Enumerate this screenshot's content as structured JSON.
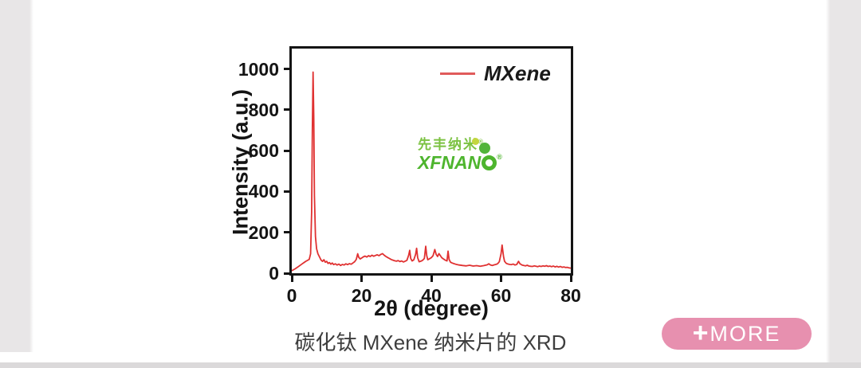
{
  "page": {
    "caption": "碳化钛 MXene 纳米片的 XRD",
    "more_button": {
      "plus": "+",
      "label": "MORE",
      "bg_color": "#e790af"
    },
    "colors": {
      "side_gutter": "#e8e6e7",
      "bottom_strip": "#dbd9da",
      "background": "#ffffff"
    }
  },
  "watermark": {
    "line1": "先丰纳米",
    "reg_mark": "®",
    "line2_prefix": "XFNAN",
    "line2_o": "O",
    "color_line1": "#7cc242",
    "color_line2": "#4eb52e"
  },
  "chart_data": {
    "type": "line",
    "title": "",
    "xlabel": "2θ (degree)",
    "ylabel": "Intensity (a.u.)",
    "xlim": [
      0,
      80
    ],
    "ylim": [
      0,
      1100
    ],
    "x_ticks": [
      0,
      20,
      40,
      60,
      80
    ],
    "y_ticks": [
      0,
      200,
      400,
      600,
      800,
      1000
    ],
    "grid": false,
    "legend": {
      "label": "MXene",
      "position": "top-right",
      "line_color": "#e05b5b"
    },
    "series": [
      {
        "name": "MXene",
        "color": "#e03131",
        "points": [
          [
            0,
            12
          ],
          [
            1,
            22
          ],
          [
            2,
            34
          ],
          [
            3,
            46
          ],
          [
            4,
            58
          ],
          [
            5,
            68
          ],
          [
            5.4,
            95
          ],
          [
            5.7,
            300
          ],
          [
            5.9,
            700
          ],
          [
            6.1,
            985
          ],
          [
            6.3,
            760
          ],
          [
            6.5,
            380
          ],
          [
            6.8,
            180
          ],
          [
            7.1,
            120
          ],
          [
            7.5,
            95
          ],
          [
            8,
            78
          ],
          [
            8.4,
            64
          ],
          [
            8.8,
            58
          ],
          [
            9.2,
            66
          ],
          [
            9.6,
            54
          ],
          [
            10,
            58
          ],
          [
            10.4,
            48
          ],
          [
            10.8,
            52
          ],
          [
            11.2,
            44
          ],
          [
            11.6,
            50
          ],
          [
            12,
            42
          ],
          [
            12.5,
            46
          ],
          [
            13,
            40
          ],
          [
            13.5,
            45
          ],
          [
            14,
            38
          ],
          [
            14.5,
            43
          ],
          [
            15,
            40
          ],
          [
            15.5,
            46
          ],
          [
            16,
            42
          ],
          [
            16.5,
            47
          ],
          [
            17,
            44
          ],
          [
            17.5,
            50
          ],
          [
            18,
            56
          ],
          [
            18.5,
            68
          ],
          [
            18.9,
            95
          ],
          [
            19.2,
            78
          ],
          [
            19.6,
            70
          ],
          [
            20,
            74
          ],
          [
            20.5,
            80
          ],
          [
            21,
            84
          ],
          [
            21.5,
            79
          ],
          [
            22,
            86
          ],
          [
            22.5,
            82
          ],
          [
            23,
            88
          ],
          [
            23.5,
            83
          ],
          [
            24,
            87
          ],
          [
            24.5,
            90
          ],
          [
            25,
            86
          ],
          [
            25.5,
            92
          ],
          [
            26,
            96
          ],
          [
            26.5,
            88
          ],
          [
            27,
            82
          ],
          [
            27.5,
            77
          ],
          [
            28,
            72
          ],
          [
            28.5,
            67
          ],
          [
            29,
            64
          ],
          [
            29.5,
            61
          ],
          [
            30,
            59
          ],
          [
            30.5,
            62
          ],
          [
            31,
            57
          ],
          [
            31.5,
            60
          ],
          [
            32,
            55
          ],
          [
            32.5,
            59
          ],
          [
            33,
            63
          ],
          [
            33.5,
            88
          ],
          [
            33.8,
            112
          ],
          [
            34.1,
            72
          ],
          [
            34.5,
            60
          ],
          [
            35,
            66
          ],
          [
            35.5,
            92
          ],
          [
            35.8,
            122
          ],
          [
            36.1,
            76
          ],
          [
            36.5,
            56
          ],
          [
            37,
            59
          ],
          [
            37.5,
            63
          ],
          [
            38,
            72
          ],
          [
            38.4,
            132
          ],
          [
            38.7,
            86
          ],
          [
            39,
            66
          ],
          [
            39.5,
            71
          ],
          [
            40,
            76
          ],
          [
            40.5,
            86
          ],
          [
            41,
            116
          ],
          [
            41.4,
            92
          ],
          [
            41.8,
            82
          ],
          [
            42.2,
            96
          ],
          [
            42.6,
            86
          ],
          [
            43,
            76
          ],
          [
            43.5,
            70
          ],
          [
            44,
            64
          ],
          [
            44.5,
            60
          ],
          [
            44.8,
            108
          ],
          [
            45.1,
            68
          ],
          [
            45.5,
            54
          ],
          [
            46,
            50
          ],
          [
            46.5,
            47
          ],
          [
            47,
            44
          ],
          [
            47.5,
            42
          ],
          [
            48,
            40
          ],
          [
            49,
            38
          ],
          [
            50,
            36
          ],
          [
            51,
            39
          ],
          [
            52,
            35
          ],
          [
            53,
            37
          ],
          [
            54,
            34
          ],
          [
            55,
            37
          ],
          [
            56,
            41
          ],
          [
            56.5,
            46
          ],
          [
            57,
            40
          ],
          [
            57.5,
            38
          ],
          [
            58,
            41
          ],
          [
            58.5,
            43
          ],
          [
            59,
            46
          ],
          [
            59.5,
            56
          ],
          [
            60,
            95
          ],
          [
            60.3,
            138
          ],
          [
            60.7,
            82
          ],
          [
            61,
            58
          ],
          [
            61.5,
            48
          ],
          [
            62,
            45
          ],
          [
            62.5,
            43
          ],
          [
            63,
            42
          ],
          [
            63.5,
            45
          ],
          [
            64,
            40
          ],
          [
            64.5,
            43
          ],
          [
            65,
            58
          ],
          [
            65.4,
            47
          ],
          [
            66,
            40
          ],
          [
            66.5,
            38
          ],
          [
            67,
            36
          ],
          [
            67.5,
            39
          ],
          [
            68,
            35
          ],
          [
            68.5,
            34
          ],
          [
            69,
            33
          ],
          [
            69.5,
            36
          ],
          [
            70,
            34
          ],
          [
            70.5,
            32
          ],
          [
            71,
            35
          ],
          [
            71.5,
            33
          ],
          [
            72,
            36
          ],
          [
            72.5,
            34
          ],
          [
            73,
            37
          ],
          [
            73.5,
            33
          ],
          [
            74,
            35
          ],
          [
            74.5,
            32
          ],
          [
            75,
            35
          ],
          [
            75.5,
            31
          ],
          [
            76,
            34
          ],
          [
            76.5,
            30
          ],
          [
            77,
            33
          ],
          [
            77.5,
            29
          ],
          [
            78,
            31
          ],
          [
            78.5,
            28
          ],
          [
            79,
            29
          ],
          [
            79.5,
            26
          ],
          [
            80,
            25
          ]
        ]
      }
    ]
  }
}
